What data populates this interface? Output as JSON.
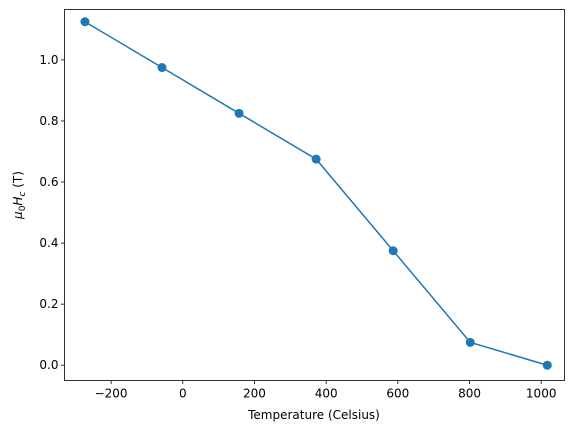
{
  "chart_data": {
    "type": "line",
    "title": "",
    "xlabel": "Temperature (Celsius)",
    "ylabel_parts": {
      "mu": "μ",
      "zero": "0",
      "H": "H",
      "c": "c",
      "unit": " (T)"
    },
    "xlim": [
      -330,
      1065
    ],
    "ylim": [
      -0.05,
      1.165
    ],
    "xticks": [
      -200,
      0,
      200,
      400,
      600,
      800,
      1000
    ],
    "xtick_labels": [
      "−200",
      "0",
      "200",
      "400",
      "600",
      "800",
      "1000"
    ],
    "yticks": [
      0.0,
      0.2,
      0.4,
      0.6,
      0.8,
      1.0
    ],
    "ytick_labels": [
      "0.0",
      "0.2",
      "0.4",
      "0.6",
      "0.8",
      "1.0"
    ],
    "grid": false,
    "series": [
      {
        "x": [
          -273,
          -58,
          157,
          372,
          587,
          802,
          1017
        ],
        "y": [
          1.125,
          0.975,
          0.825,
          0.675,
          0.375,
          0.075,
          0.0
        ],
        "color": "#1f77b4",
        "marker": "circle"
      }
    ]
  }
}
